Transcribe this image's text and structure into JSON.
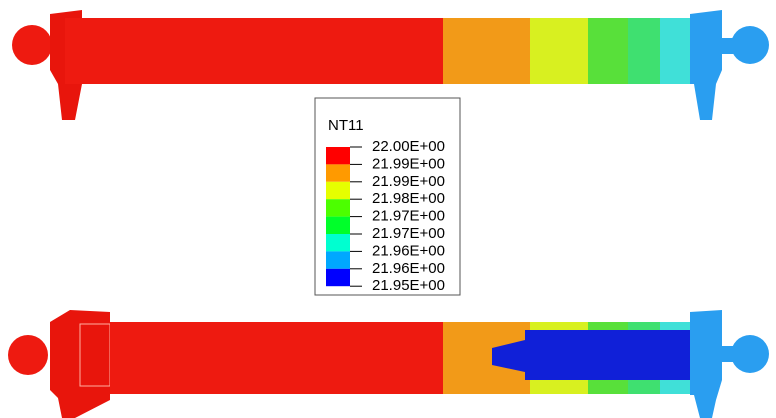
{
  "legend": {
    "title": "NT11",
    "labels": [
      "22.00E+00",
      "21.99E+00",
      "21.99E+00",
      "21.98E+00",
      "21.97E+00",
      "21.97E+00",
      "21.96E+00",
      "21.96E+00",
      "21.95E+00"
    ],
    "colors": [
      "#ff0000",
      "#ff9a00",
      "#e6ff00",
      "#4cff00",
      "#00ff2a",
      "#00ffd0",
      "#00a8ff",
      "#0000ff"
    ]
  }
}
